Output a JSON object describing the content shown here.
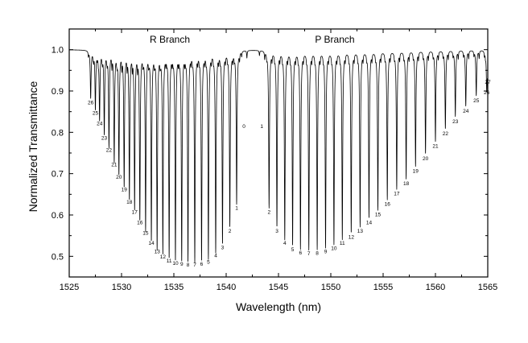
{
  "chart_data": {
    "type": "line",
    "title": "",
    "xlabel": "Wavelength (nm)",
    "ylabel": "Normalized Transmittance",
    "xlim": [
      1525,
      1565
    ],
    "ylim": [
      0.45,
      1.05
    ],
    "xticks": [
      1525,
      1530,
      1535,
      1540,
      1545,
      1550,
      1555,
      1560,
      1565
    ],
    "yticks": [
      0.5,
      0.6,
      0.7,
      0.8,
      0.9,
      1.0
    ],
    "xtick_labels": [
      "1525",
      "1530",
      "1535",
      "1540",
      "1545",
      "1550",
      "1555",
      "1560",
      "1565"
    ],
    "ytick_labels": [
      "0.5",
      "0.6",
      "0.7",
      "0.8",
      "0.9",
      "1.0"
    ],
    "grid": false,
    "legend": "none",
    "line_color": "#000000",
    "annotations": [
      "R Branch",
      "P Branch"
    ],
    "branches": [
      {
        "name": "R Branch",
        "lines": [
          {
            "label": "0",
            "x": 1541.7,
            "y": 1.0
          },
          {
            "label": "1",
            "x": 1541.0,
            "y": 0.63
          },
          {
            "label": "2",
            "x": 1540.35,
            "y": 0.575
          },
          {
            "label": "3",
            "x": 1539.65,
            "y": 0.535
          },
          {
            "label": "4",
            "x": 1539.0,
            "y": 0.515
          },
          {
            "label": "5",
            "x": 1538.3,
            "y": 0.5
          },
          {
            "label": "6",
            "x": 1537.65,
            "y": 0.495
          },
          {
            "label": "7",
            "x": 1537.0,
            "y": 0.493
          },
          {
            "label": "8",
            "x": 1536.35,
            "y": 0.493
          },
          {
            "label": "9",
            "x": 1535.75,
            "y": 0.495
          },
          {
            "label": "10",
            "x": 1535.15,
            "y": 0.497
          },
          {
            "label": "11",
            "x": 1534.55,
            "y": 0.503
          },
          {
            "label": "12",
            "x": 1533.95,
            "y": 0.512
          },
          {
            "label": "13",
            "x": 1533.4,
            "y": 0.525
          },
          {
            "label": "14",
            "x": 1532.85,
            "y": 0.545
          },
          {
            "label": "15",
            "x": 1532.3,
            "y": 0.57
          },
          {
            "label": "16",
            "x": 1531.75,
            "y": 0.595
          },
          {
            "label": "17",
            "x": 1531.25,
            "y": 0.62
          },
          {
            "label": "18",
            "x": 1530.75,
            "y": 0.645
          },
          {
            "label": "19",
            "x": 1530.25,
            "y": 0.675
          },
          {
            "label": "20",
            "x": 1529.75,
            "y": 0.705
          },
          {
            "label": "21",
            "x": 1529.3,
            "y": 0.735
          },
          {
            "label": "22",
            "x": 1528.8,
            "y": 0.77
          },
          {
            "label": "23",
            "x": 1528.35,
            "y": 0.8
          },
          {
            "label": "24",
            "x": 1527.9,
            "y": 0.835
          },
          {
            "label": "25",
            "x": 1527.5,
            "y": 0.86
          },
          {
            "label": "26",
            "x": 1527.05,
            "y": 0.885
          }
        ]
      },
      {
        "name": "P Branch",
        "lines": [
          {
            "label": "1",
            "x": 1543.4,
            "y": 1.0
          },
          {
            "label": "2",
            "x": 1544.1,
            "y": 0.62
          },
          {
            "label": "3",
            "x": 1544.85,
            "y": 0.575
          },
          {
            "label": "4",
            "x": 1545.6,
            "y": 0.545
          },
          {
            "label": "5",
            "x": 1546.35,
            "y": 0.53
          },
          {
            "label": "6",
            "x": 1547.1,
            "y": 0.522
          },
          {
            "label": "7",
            "x": 1547.9,
            "y": 0.52
          },
          {
            "label": "8",
            "x": 1548.7,
            "y": 0.521
          },
          {
            "label": "9",
            "x": 1549.5,
            "y": 0.525
          },
          {
            "label": "10",
            "x": 1550.3,
            "y": 0.533
          },
          {
            "label": "11",
            "x": 1551.1,
            "y": 0.545
          },
          {
            "label": "12",
            "x": 1551.95,
            "y": 0.56
          },
          {
            "label": "13",
            "x": 1552.8,
            "y": 0.575
          },
          {
            "label": "14",
            "x": 1553.65,
            "y": 0.595
          },
          {
            "label": "15",
            "x": 1554.5,
            "y": 0.615
          },
          {
            "label": "16",
            "x": 1555.4,
            "y": 0.64
          },
          {
            "label": "17",
            "x": 1556.3,
            "y": 0.665
          },
          {
            "label": "18",
            "x": 1557.2,
            "y": 0.69
          },
          {
            "label": "19",
            "x": 1558.1,
            "y": 0.72
          },
          {
            "label": "20",
            "x": 1559.05,
            "y": 0.75
          },
          {
            "label": "21",
            "x": 1560.0,
            "y": 0.78
          },
          {
            "label": "22",
            "x": 1560.95,
            "y": 0.81
          },
          {
            "label": "23",
            "x": 1561.9,
            "y": 0.84
          },
          {
            "label": "24",
            "x": 1562.9,
            "y": 0.865
          },
          {
            "label": "25",
            "x": 1563.9,
            "y": 0.89
          },
          {
            "label": "26",
            "x": 1564.9,
            "y": 0.91
          },
          {
            "label": "27",
            "x": 1565.0,
            "y": 0.935
          }
        ]
      }
    ]
  }
}
